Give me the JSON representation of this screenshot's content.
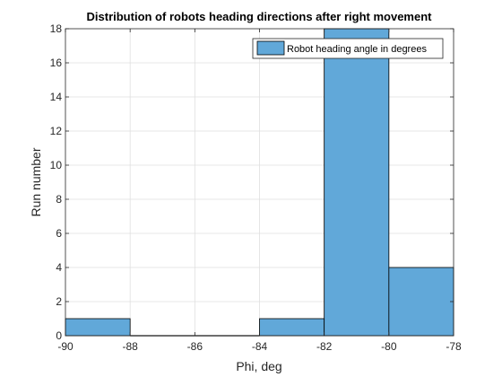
{
  "chart_data": {
    "type": "bar",
    "title": "Distribution of robots heading directions after right movement",
    "xlabel": "Phi, deg",
    "ylabel": "Run number",
    "xlim": [
      -90,
      -78
    ],
    "ylim": [
      0,
      18
    ],
    "xticks": [
      "-90",
      "-88",
      "-86",
      "-84",
      "-82",
      "-80",
      "-78"
    ],
    "yticks": [
      "0",
      "2",
      "4",
      "6",
      "8",
      "10",
      "12",
      "14",
      "16",
      "18"
    ],
    "bins": [
      {
        "x0": -90,
        "x1": -88,
        "value": 1
      },
      {
        "x0": -88,
        "x1": -86,
        "value": 0
      },
      {
        "x0": -86,
        "x1": -84,
        "value": 0
      },
      {
        "x0": -84,
        "x1": -82,
        "value": 1
      },
      {
        "x0": -82,
        "x1": -80,
        "value": 18
      },
      {
        "x0": -80,
        "x1": -78,
        "value": 4
      }
    ],
    "series": [
      {
        "name": "Robot heading angle in degrees"
      }
    ],
    "grid": true,
    "legend_position": "top-right",
    "colors": {
      "bar_fill": "#61a8d9",
      "bar_edge": "#000000",
      "grid": "#dfdfdf",
      "axis": "#262626"
    }
  }
}
